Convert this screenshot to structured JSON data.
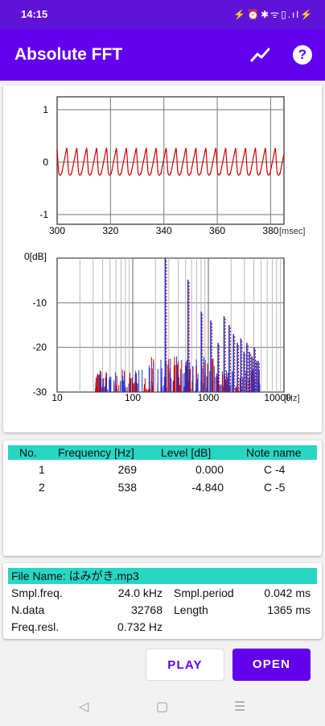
{
  "status": {
    "time": "14:15",
    "icons": "⚡⏰✱ᯤ▯.ıl⚡"
  },
  "app_bar": {
    "title": "Absolute FFT",
    "accent": "#6200ee"
  },
  "waveform": {
    "y_ticks": [
      "1",
      "0",
      "-1"
    ],
    "x_ticks": [
      "300",
      "320",
      "340",
      "360",
      "380"
    ],
    "x_unit": "[msec]",
    "period_ms": 3.72,
    "color": "#d00000"
  },
  "spectrum": {
    "y_ticks": [
      "0[dB]",
      "-10",
      "-20",
      "-30"
    ],
    "x_ticks": [
      "10",
      "100",
      "1000",
      "10000"
    ],
    "x_unit": "[Hz]",
    "peaks_hz": [
      269,
      538
    ]
  },
  "table": {
    "headers": {
      "no": "No.",
      "freq": "Frequency [Hz]",
      "level": "Level [dB]",
      "note": "Note name"
    },
    "rows": [
      {
        "no": "1",
        "freq": "269",
        "level": "0.000",
        "note": "C -4"
      },
      {
        "no": "2",
        "freq": "538",
        "level": "-4.840",
        "note": "C -5"
      }
    ]
  },
  "info": {
    "file_name": "File Name: はみがき.mp3",
    "smpl_freq_label": "Smpl.freq.",
    "smpl_freq_value": "24.0 kHz",
    "smpl_period_label": "Smpl.period",
    "smpl_period_value": "0.042 ms",
    "ndata_label": "N.data",
    "ndata_value": "32768",
    "length_label": "Length",
    "length_value": "1365 ms",
    "freq_resl_label": "Freq.resl.",
    "freq_resl_value": "0.732 Hz"
  },
  "buttons": {
    "play": "PLAY",
    "open": "OPEN"
  }
}
